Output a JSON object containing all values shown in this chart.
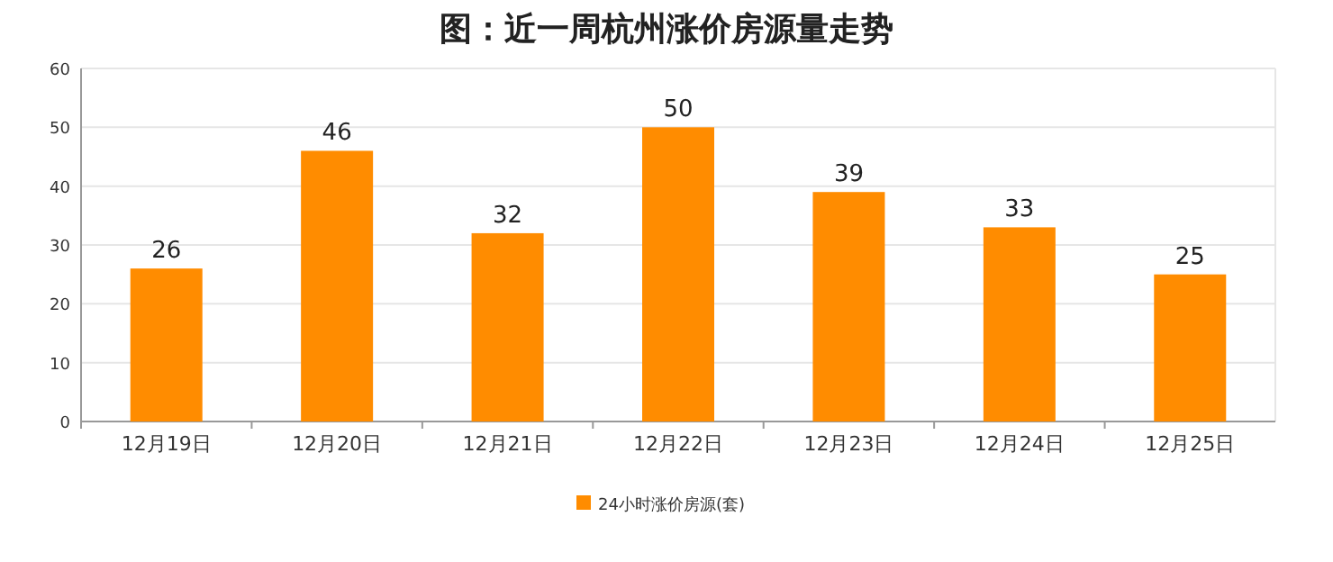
{
  "chart_data": {
    "type": "bar",
    "title": "图：近一周杭州涨价房源量走势",
    "categories": [
      "12月19日",
      "12月20日",
      "12月21日",
      "12月22日",
      "12月23日",
      "12月24日",
      "12月25日"
    ],
    "series": [
      {
        "name": "24小时涨价房源(套)",
        "color": "#ff8c00",
        "values": [
          26,
          46,
          32,
          50,
          39,
          33,
          25
        ]
      }
    ],
    "ylim": [
      0,
      60
    ],
    "yticks": [
      0,
      10,
      20,
      30,
      40,
      50,
      60
    ],
    "grid": "y",
    "legend": "bottom",
    "data_labels": true
  }
}
